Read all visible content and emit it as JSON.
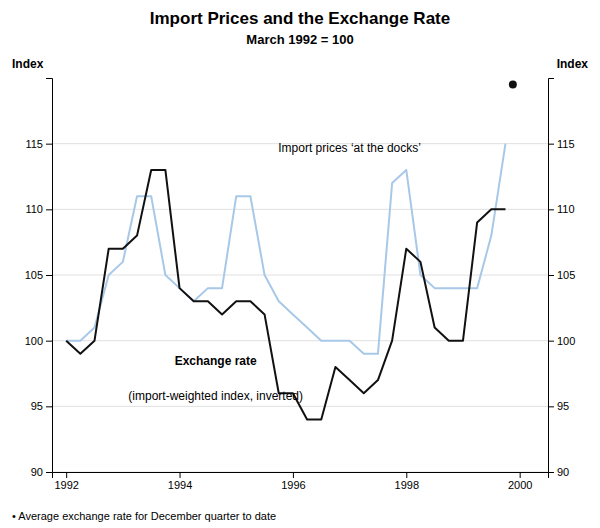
{
  "chart_data": {
    "type": "line",
    "title": "Import Prices and the Exchange Rate",
    "subtitle": "March 1992 = 100",
    "ylabel": "Index",
    "y2label": "Index",
    "footnote": "• Average exchange rate for December quarter to date",
    "annotations": [
      "Import prices ‘at the docks’",
      "Exchange rate",
      "(import-weighted index, inverted)"
    ],
    "x": [
      1992.0,
      1992.25,
      1992.5,
      1992.75,
      1993.0,
      1993.25,
      1993.5,
      1993.75,
      1994.0,
      1994.25,
      1994.5,
      1994.75,
      1995.0,
      1995.25,
      1995.5,
      1995.75,
      1996.0,
      1996.25,
      1996.5,
      1996.75,
      1997.0,
      1997.25,
      1997.5,
      1997.75,
      1998.0,
      1998.25,
      1998.5,
      1998.75,
      1999.0,
      1999.25,
      1999.5,
      1999.75
    ],
    "series": [
      {
        "color": "#a8c8e8",
        "values": [
          100,
          100,
          101,
          105,
          106,
          111,
          111,
          105,
          104,
          103,
          104,
          104,
          111,
          111,
          105,
          103,
          102,
          101,
          100,
          100,
          100,
          99,
          99,
          112,
          113,
          105,
          104,
          104,
          104,
          104,
          108,
          115
        ]
      },
      {
        "color": "#111111",
        "values": [
          100,
          99,
          100,
          107,
          107,
          108,
          113,
          113,
          104,
          103,
          103,
          102,
          103,
          103,
          102,
          96,
          96,
          94,
          94,
          98,
          97,
          96,
          97,
          100,
          107,
          106,
          101,
          100,
          100,
          109,
          110,
          110
        ]
      },
      {
        "type": "scatter",
        "marker": "circle",
        "color": "#111111",
        "x": [
          1999.88
        ],
        "values": [
          119.5
        ]
      }
    ],
    "xlim": [
      1991.75,
      2000.5
    ],
    "xticks": [
      1992,
      1994,
      1996,
      1998,
      2000
    ],
    "ylim": [
      90,
      120
    ],
    "yticks": [
      90,
      95,
      100,
      105,
      110,
      115
    ],
    "y2lim": [
      90,
      120
    ],
    "y2ticks": [
      90,
      95,
      100,
      105,
      110,
      115
    ],
    "grid": true
  }
}
